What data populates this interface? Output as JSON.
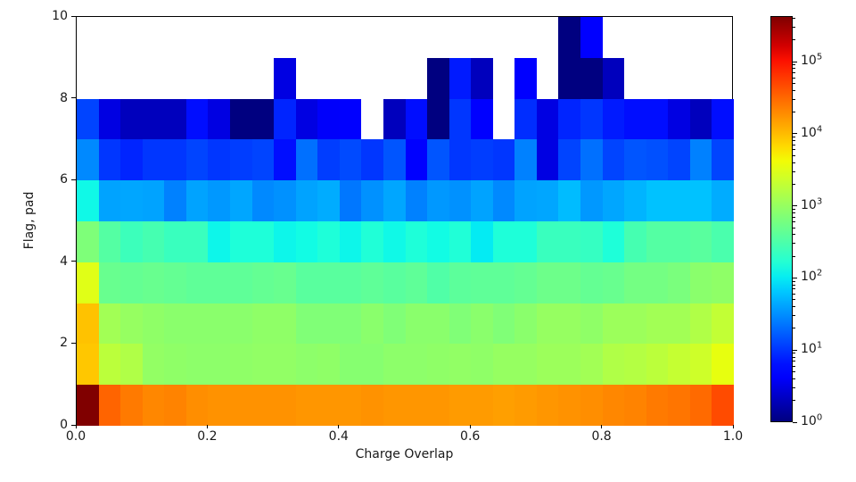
{
  "figure": {
    "background": "#ffffff"
  },
  "chart_data": {
    "type": "heatmap",
    "title": "",
    "xlabel": "Charge Overlap",
    "ylabel": "Flag, pad",
    "xlim": [
      0.0,
      1.0
    ],
    "ylim": [
      0,
      10
    ],
    "x_bins": 30,
    "y_bins": 10,
    "x_tick_labels": [
      "0.0",
      "0.2",
      "0.4",
      "0.6",
      "0.8",
      "1.0"
    ],
    "y_tick_labels": [
      "0",
      "2",
      "4",
      "6",
      "8",
      "10"
    ],
    "grid": false,
    "legend": false,
    "colormap": "jet",
    "color_scale": "log",
    "empty_bin_color": "#ffffff",
    "colorbar": {
      "position": "right",
      "vmin": 1,
      "vmax": 430000,
      "tick_base": "10",
      "tick_exponents": [
        0,
        1,
        2,
        3,
        4,
        5
      ]
    },
    "rows_order": "bottom_to_top",
    "counts": [
      [
        430000,
        34000,
        25000,
        21000,
        22000,
        19000,
        18000,
        18000,
        18000,
        18000,
        17000,
        17000,
        17000,
        18000,
        17000,
        17000,
        17000,
        16000,
        16000,
        15000,
        16000,
        17000,
        18000,
        19000,
        21000,
        22000,
        25000,
        27000,
        31000,
        48000
      ],
      [
        8700,
        1800,
        1500,
        950,
        900,
        860,
        860,
        900,
        930,
        930,
        860,
        900,
        780,
        780,
        860,
        860,
        900,
        930,
        900,
        1000,
        1000,
        1100,
        1100,
        1200,
        1500,
        1600,
        1800,
        2100,
        2400,
        3600
      ],
      [
        9300,
        1200,
        1000,
        900,
        830,
        830,
        830,
        830,
        900,
        900,
        700,
        700,
        700,
        830,
        700,
        830,
        830,
        700,
        830,
        700,
        830,
        1000,
        1000,
        900,
        1100,
        1100,
        1200,
        1200,
        1500,
        2000
      ],
      [
        3200,
        480,
        450,
        480,
        450,
        420,
        420,
        420,
        450,
        480,
        380,
        380,
        380,
        420,
        380,
        420,
        330,
        400,
        420,
        420,
        450,
        520,
        520,
        450,
        480,
        580,
        580,
        640,
        830,
        900
      ],
      [
        680,
        350,
        240,
        280,
        230,
        230,
        115,
        150,
        150,
        115,
        125,
        150,
        115,
        155,
        120,
        150,
        125,
        155,
        100,
        150,
        150,
        230,
        230,
        215,
        150,
        280,
        350,
        350,
        380,
        300
      ],
      [
        120,
        40,
        42,
        40,
        26,
        40,
        35,
        42,
        29,
        32,
        40,
        45,
        23,
        32,
        42,
        26,
        35,
        32,
        40,
        29,
        40,
        42,
        55,
        35,
        42,
        50,
        60,
        60,
        60,
        45
      ],
      [
        29,
        10,
        8,
        10,
        10,
        12,
        10,
        11,
        12,
        6,
        21,
        11,
        13,
        10,
        15,
        5,
        15,
        10,
        11,
        10,
        26,
        3,
        12,
        21,
        12,
        15,
        14,
        12,
        26,
        12
      ],
      [
        12,
        3,
        2,
        2,
        2,
        6,
        3,
        1,
        1,
        8,
        3,
        4,
        5,
        null,
        2,
        6,
        1,
        10,
        5,
        null,
        9,
        3,
        8,
        10,
        7,
        6,
        6,
        3,
        2,
        6
      ],
      [
        null,
        null,
        null,
        null,
        null,
        null,
        null,
        null,
        null,
        3,
        null,
        null,
        null,
        null,
        null,
        null,
        1,
        7,
        2,
        null,
        5,
        null,
        1,
        1,
        2,
        null,
        null,
        null,
        null,
        null
      ],
      [
        null,
        null,
        null,
        null,
        null,
        null,
        null,
        null,
        null,
        null,
        null,
        null,
        null,
        null,
        null,
        null,
        null,
        null,
        null,
        null,
        null,
        null,
        1,
        5,
        null,
        null,
        null,
        null,
        null,
        null
      ]
    ]
  }
}
